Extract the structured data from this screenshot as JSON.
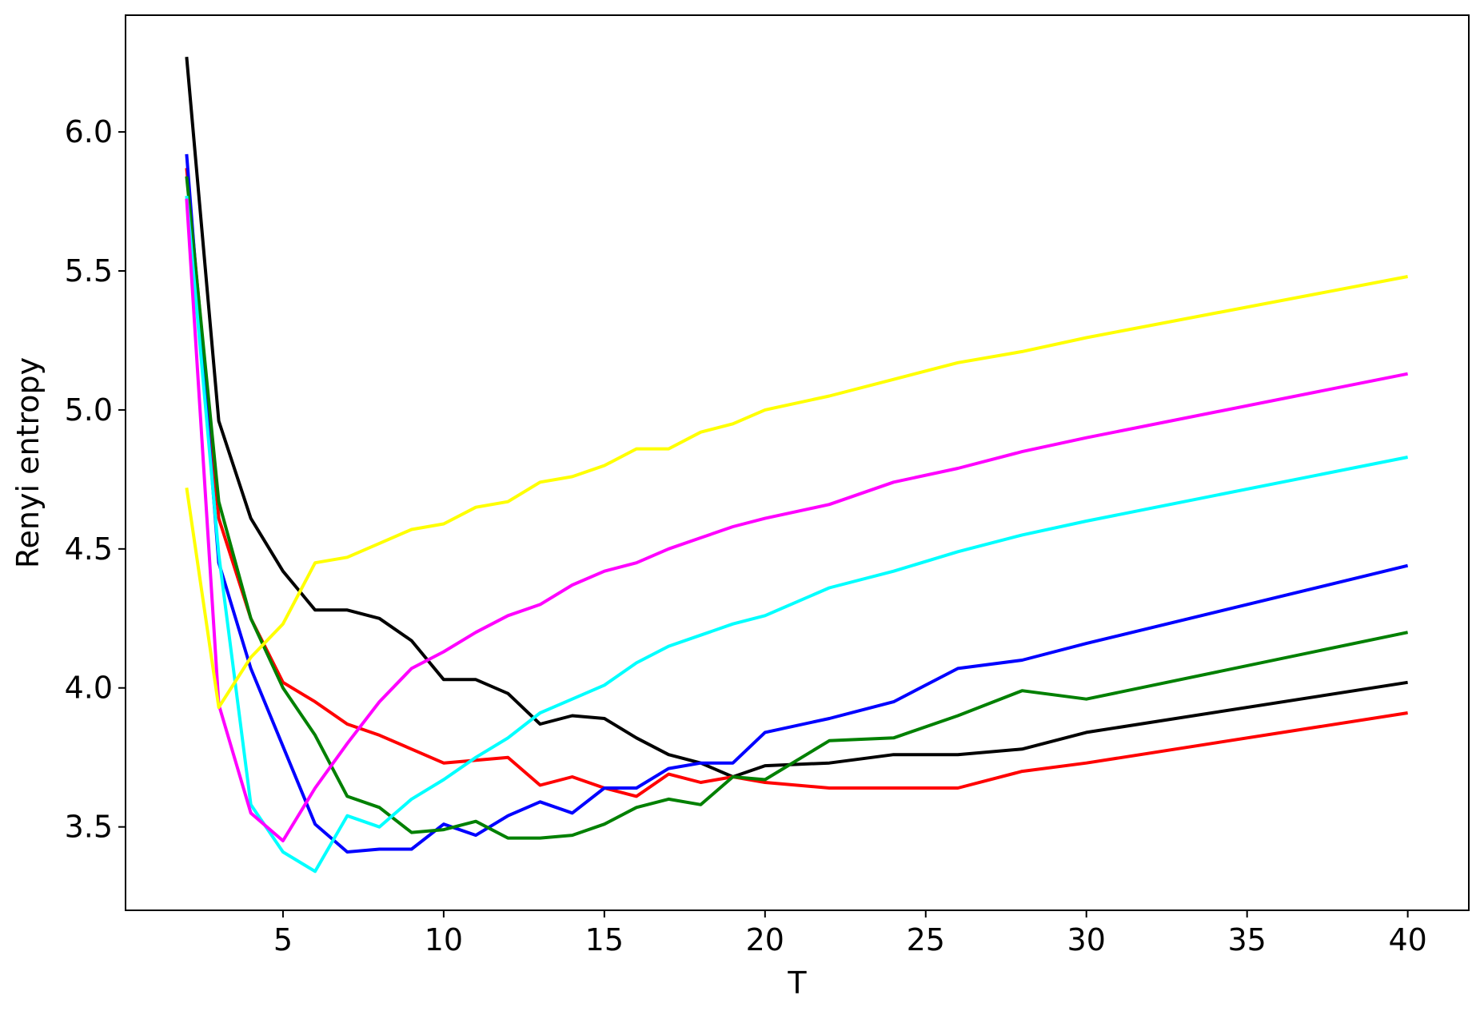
{
  "chart_data": {
    "type": "line",
    "title": "",
    "xlabel": "T",
    "ylabel": "Renyi entropy",
    "xlim": [
      0.1,
      41.9
    ],
    "ylim": [
      3.2,
      6.42
    ],
    "xticks": [
      5,
      10,
      15,
      20,
      25,
      30,
      35,
      40
    ],
    "yticks": [
      3.5,
      4.0,
      4.5,
      5.0,
      5.5,
      6.0
    ],
    "xtick_labels": [
      "5",
      "10",
      "15",
      "20",
      "25",
      "30",
      "35",
      "40"
    ],
    "ytick_labels": [
      "3.5",
      "4.0",
      "4.5",
      "5.0",
      "5.5",
      "6.0"
    ],
    "grid": false,
    "legend": "none",
    "x": [
      2,
      3,
      4,
      5,
      6,
      7,
      8,
      9,
      10,
      11,
      12,
      13,
      14,
      15,
      16,
      17,
      18,
      19,
      20,
      22,
      24,
      26,
      28,
      30,
      40
    ],
    "series": [
      {
        "color": "#000000",
        "values": [
          6.27,
          4.96,
          4.61,
          4.42,
          4.28,
          4.28,
          4.25,
          4.17,
          4.03,
          4.03,
          3.98,
          3.87,
          3.9,
          3.89,
          3.82,
          3.76,
          3.73,
          3.68,
          3.72,
          3.73,
          3.76,
          3.76,
          3.78,
          3.84,
          4.02
        ]
      },
      {
        "color": "#ff0000",
        "values": [
          5.87,
          4.61,
          4.25,
          4.02,
          3.95,
          3.87,
          3.83,
          3.78,
          3.73,
          3.74,
          3.75,
          3.65,
          3.68,
          3.64,
          3.61,
          3.69,
          3.66,
          3.68,
          3.66,
          3.64,
          3.64,
          3.64,
          3.7,
          3.73,
          3.91
        ]
      },
      {
        "color": "#0000ff",
        "values": [
          5.92,
          4.45,
          4.07,
          3.79,
          3.51,
          3.41,
          3.42,
          3.42,
          3.51,
          3.47,
          3.54,
          3.59,
          3.55,
          3.64,
          3.64,
          3.71,
          3.73,
          3.73,
          3.84,
          3.89,
          3.95,
          4.07,
          4.1,
          4.16,
          4.44
        ]
      },
      {
        "color": "#008000",
        "values": [
          5.84,
          4.67,
          4.25,
          4.0,
          3.83,
          3.61,
          3.57,
          3.48,
          3.49,
          3.52,
          3.46,
          3.46,
          3.47,
          3.51,
          3.57,
          3.6,
          3.58,
          3.68,
          3.67,
          3.81,
          3.82,
          3.9,
          3.99,
          3.96,
          4.2
        ]
      },
      {
        "color": "#00ffff",
        "values": [
          5.77,
          4.48,
          3.58,
          3.41,
          3.34,
          3.54,
          3.5,
          3.6,
          3.67,
          3.75,
          3.82,
          3.91,
          3.96,
          4.01,
          4.09,
          4.15,
          4.19,
          4.23,
          4.26,
          4.36,
          4.42,
          4.49,
          4.55,
          4.6,
          4.83
        ]
      },
      {
        "color": "#ff00ff",
        "values": [
          5.76,
          3.94,
          3.55,
          3.45,
          3.64,
          3.8,
          3.95,
          4.07,
          4.13,
          4.2,
          4.26,
          4.3,
          4.37,
          4.42,
          4.45,
          4.5,
          4.54,
          4.58,
          4.61,
          4.66,
          4.74,
          4.79,
          4.85,
          4.9,
          5.13
        ]
      },
      {
        "color": "#ffff00",
        "values": [
          4.72,
          3.93,
          4.11,
          4.23,
          4.45,
          4.47,
          4.52,
          4.57,
          4.59,
          4.65,
          4.67,
          4.74,
          4.76,
          4.8,
          4.86,
          4.86,
          4.92,
          4.95,
          5.0,
          5.05,
          5.11,
          5.17,
          5.21,
          5.26,
          5.48
        ]
      }
    ]
  }
}
